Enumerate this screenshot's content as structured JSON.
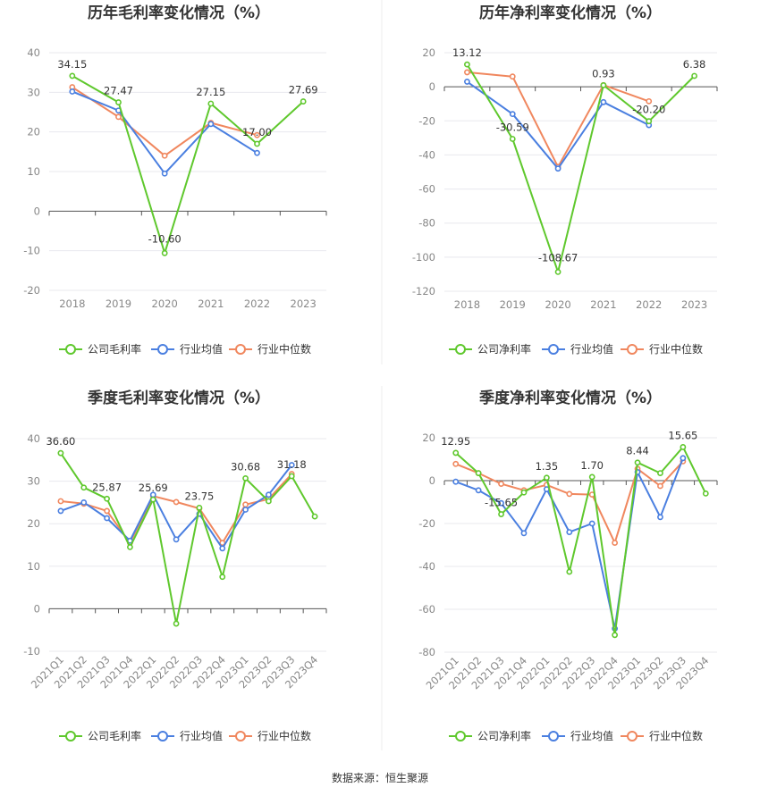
{
  "colors": {
    "company": "#5fc82d",
    "mean": "#4a7fe0",
    "median": "#f0875e",
    "grid": "#e8e8ee",
    "axis": "#555555"
  },
  "source": "数据来源：恒生聚源",
  "chart_data": [
    {
      "type": "line",
      "title": "历年毛利率变化情况（%）",
      "categories": [
        "2018",
        "2019",
        "2020",
        "2021",
        "2022",
        "2023"
      ],
      "ylim": [
        -20,
        40
      ],
      "yticks": [
        -20,
        -10,
        0,
        10,
        20,
        30,
        40
      ],
      "series": [
        {
          "name": "公司毛利率",
          "key": "company",
          "values": [
            34.15,
            27.47,
            -10.6,
            27.15,
            17.0,
            27.69
          ]
        },
        {
          "name": "行业均值",
          "key": "mean",
          "values": [
            30.2,
            25.4,
            9.5,
            22.0,
            14.7,
            null
          ]
        },
        {
          "name": "行业中位数",
          "key": "median",
          "values": [
            31.3,
            23.8,
            14.0,
            22.3,
            19.2,
            null
          ]
        }
      ],
      "labels": [
        "34.15",
        "27.47",
        "-10.60",
        "27.15",
        "17.00",
        "27.69"
      ],
      "x_rotated": false
    },
    {
      "type": "line",
      "title": "历年净利率变化情况（%）",
      "categories": [
        "2018",
        "2019",
        "2020",
        "2021",
        "2022",
        "2023"
      ],
      "ylim": [
        -120,
        20
      ],
      "yticks": [
        -120,
        -100,
        -80,
        -60,
        -40,
        -20,
        0,
        20
      ],
      "series": [
        {
          "name": "公司净利率",
          "key": "company",
          "values": [
            13.12,
            -30.59,
            -108.67,
            0.93,
            -20.2,
            6.38
          ]
        },
        {
          "name": "行业均值",
          "key": "mean",
          "values": [
            3.0,
            -16.0,
            -48.0,
            -9.0,
            -22.5,
            null
          ]
        },
        {
          "name": "行业中位数",
          "key": "median",
          "values": [
            8.5,
            6.0,
            -47.0,
            1.0,
            -8.5,
            null
          ]
        }
      ],
      "labels": [
        "13.12",
        "-30.59",
        "-108.67",
        "0.93",
        "-20.20",
        "6.38"
      ],
      "x_rotated": false
    },
    {
      "type": "line",
      "title": "季度毛利率变化情况（%）",
      "categories": [
        "2021Q1",
        "2021Q2",
        "2021Q3",
        "2021Q4",
        "2022Q1",
        "2022Q2",
        "2022Q3",
        "2022Q4",
        "2023Q1",
        "2023Q2",
        "2023Q3",
        "2023Q4"
      ],
      "ylim": [
        -10,
        40
      ],
      "yticks": [
        -10,
        0,
        10,
        20,
        30,
        40
      ],
      "series": [
        {
          "name": "公司毛利率",
          "key": "company",
          "values": [
            36.6,
            28.5,
            25.87,
            14.5,
            25.69,
            -3.5,
            23.75,
            7.5,
            30.68,
            25.3,
            31.18,
            21.7
          ]
        },
        {
          "name": "行业均值",
          "key": "mean",
          "values": [
            23.0,
            25.0,
            21.3,
            16.0,
            26.8,
            16.3,
            22.3,
            14.2,
            23.3,
            26.8,
            33.8,
            null
          ]
        },
        {
          "name": "行业中位数",
          "key": "median",
          "values": [
            25.3,
            24.7,
            23.0,
            15.5,
            26.5,
            25.1,
            23.6,
            15.5,
            24.5,
            25.8,
            31.7,
            null
          ]
        }
      ],
      "labels": [
        "36.60",
        "",
        "25.87",
        "",
        "25.69",
        "",
        "23.75",
        "",
        "30.68",
        "",
        "31.18",
        ""
      ],
      "x_rotated": true
    },
    {
      "type": "line",
      "title": "季度净利率变化情况（%）",
      "categories": [
        "2021Q1",
        "2021Q2",
        "2021Q3",
        "2021Q4",
        "2022Q1",
        "2022Q2",
        "2022Q3",
        "2022Q4",
        "2023Q1",
        "2023Q2",
        "2023Q3",
        "2023Q4"
      ],
      "ylim": [
        -80,
        20
      ],
      "yticks": [
        -80,
        -60,
        -40,
        -20,
        0,
        20
      ],
      "series": [
        {
          "name": "公司净利率",
          "key": "company",
          "values": [
            12.95,
            3.5,
            -15.65,
            -5.5,
            1.35,
            -42.5,
            1.7,
            -72.0,
            8.44,
            3.5,
            15.65,
            -6.0
          ]
        },
        {
          "name": "行业均值",
          "key": "mean",
          "values": [
            -0.5,
            -4.5,
            -10.5,
            -24.5,
            -4.0,
            -24.0,
            -20.0,
            -69.0,
            4.0,
            -17.0,
            10.5,
            null
          ]
        },
        {
          "name": "行业中位数",
          "key": "median",
          "values": [
            7.8,
            3.5,
            -1.5,
            -4.5,
            -2.0,
            -6.2,
            -6.5,
            -29.0,
            5.5,
            -2.5,
            9.0,
            null
          ]
        }
      ],
      "labels": [
        "12.95",
        "",
        "-15.65",
        "",
        "1.35",
        "",
        "1.70",
        "",
        "8.44",
        "",
        "15.65",
        ""
      ],
      "x_rotated": true
    }
  ]
}
